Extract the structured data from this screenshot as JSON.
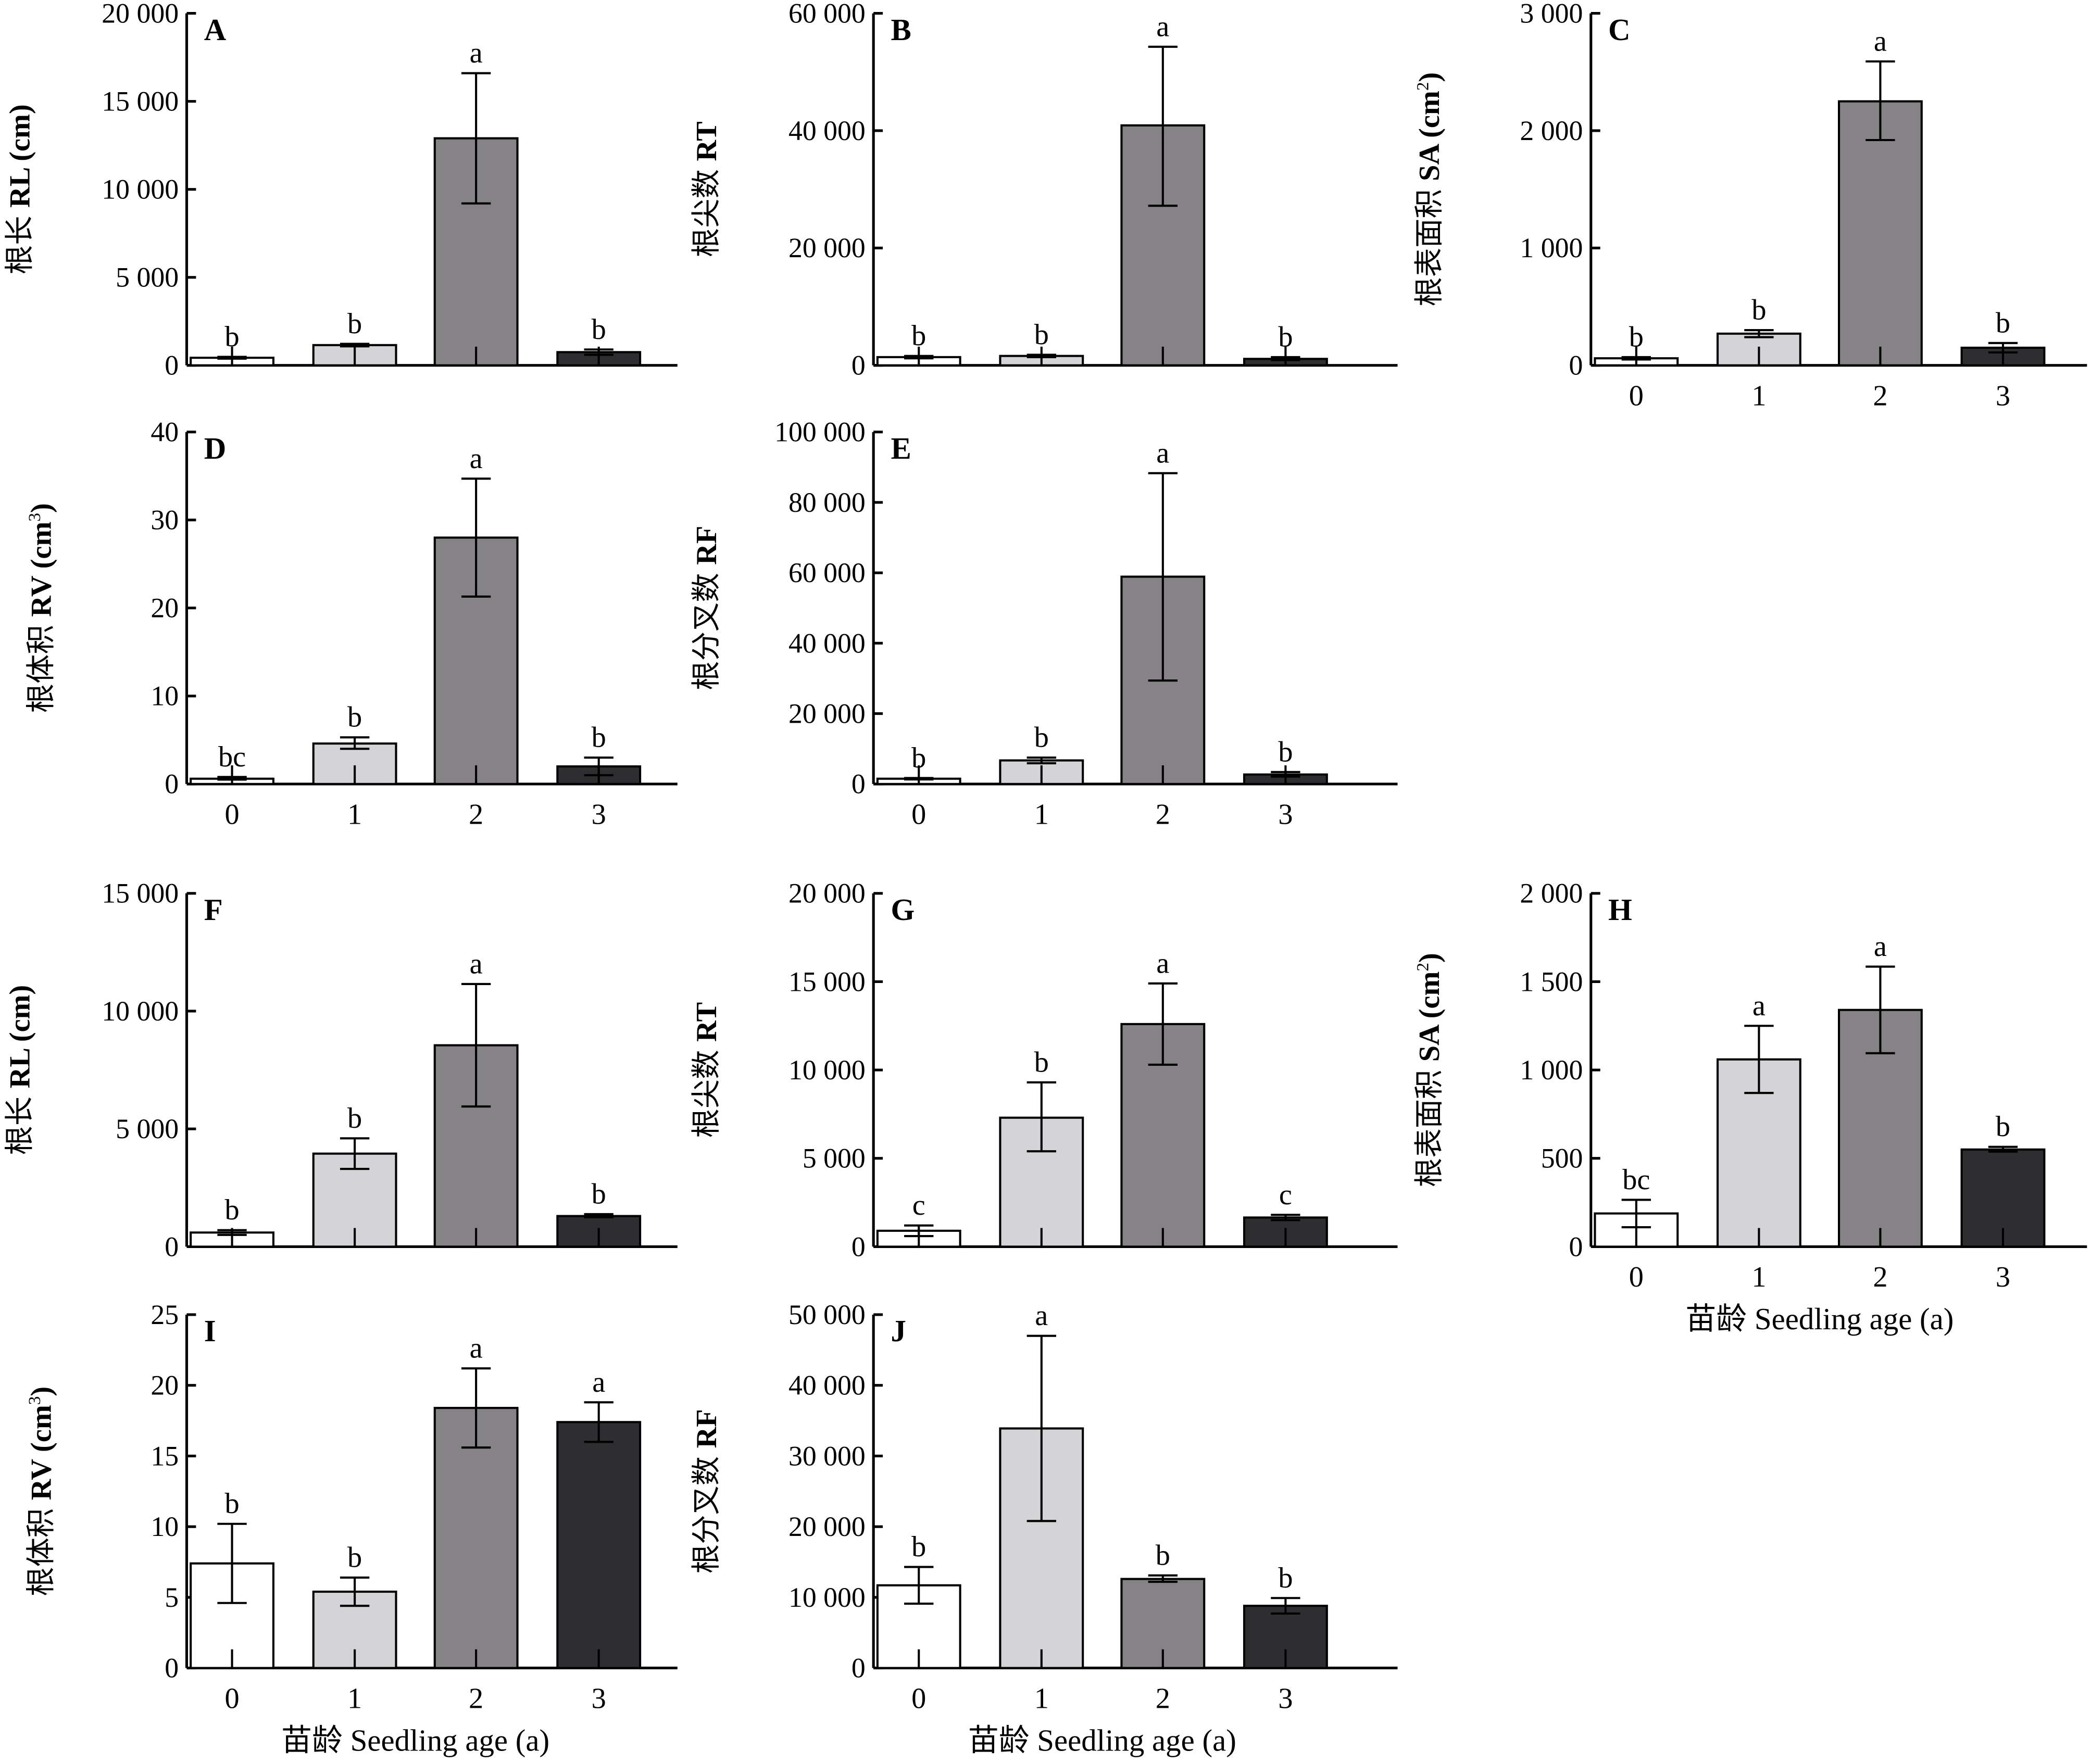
{
  "figure": {
    "x_axis_title": "苗龄 Seedling age (a)",
    "bar_colors": [
      "#ffffff",
      "#d4d4d6",
      "#858386",
      "#2e2e30"
    ]
  },
  "chart_data": [
    {
      "panel": "A",
      "type": "bar",
      "ylabel_cn": "根长",
      "ylabel_en": "RL (cm)",
      "ylabel_sup": "",
      "categories": [
        "0",
        "1",
        "2",
        "3"
      ],
      "show_xticks": false,
      "show_xlabel": false,
      "ylim": [
        0,
        20000
      ],
      "yticks": [
        0,
        5000,
        10000,
        15000,
        20000
      ],
      "ytick_labels": [
        "0",
        "5 000",
        "10 000",
        "15 000",
        "20 000"
      ],
      "values": [
        430,
        1150,
        12900,
        750
      ],
      "err_low": [
        380,
        1080,
        9200,
        600
      ],
      "err_high": [
        480,
        1220,
        16600,
        900
      ],
      "letters": [
        "b",
        "b",
        "a",
        "b"
      ]
    },
    {
      "panel": "B",
      "type": "bar",
      "ylabel_cn": "根尖数",
      "ylabel_en": "RT",
      "ylabel_sup": "",
      "categories": [
        "0",
        "1",
        "2",
        "3"
      ],
      "show_xticks": false,
      "show_xlabel": false,
      "ylim": [
        0,
        60000
      ],
      "yticks": [
        0,
        20000,
        40000,
        60000
      ],
      "ytick_labels": [
        "0",
        "20 000",
        "40 000",
        "60 000"
      ],
      "values": [
        1400,
        1600,
        40900,
        1100
      ],
      "err_low": [
        1200,
        1400,
        27200,
        900
      ],
      "err_high": [
        1600,
        1800,
        54300,
        1400
      ],
      "letters": [
        "b",
        "b",
        "a",
        "b"
      ]
    },
    {
      "panel": "C",
      "type": "bar",
      "ylabel_cn": "根表面积",
      "ylabel_en": "SA (cm",
      "ylabel_sup": "2",
      "categories": [
        "0",
        "1",
        "2",
        "3"
      ],
      "show_xticks": true,
      "show_xlabel": false,
      "ylim": [
        0,
        3000
      ],
      "yticks": [
        0,
        1000,
        2000,
        3000
      ],
      "ytick_labels": [
        "0",
        "1 000",
        "2 000",
        "3 000"
      ],
      "values": [
        60,
        270,
        2250,
        150
      ],
      "err_low": [
        50,
        240,
        1920,
        110
      ],
      "err_high": [
        70,
        300,
        2590,
        190
      ],
      "letters": [
        "b",
        "b",
        "a",
        "b"
      ]
    },
    {
      "panel": "D",
      "type": "bar",
      "ylabel_cn": "根体积",
      "ylabel_en": "RV (cm",
      "ylabel_sup": "3",
      "categories": [
        "0",
        "1",
        "2",
        "3"
      ],
      "show_xticks": true,
      "show_xlabel": false,
      "ylim": [
        0,
        40
      ],
      "yticks": [
        0,
        10,
        20,
        30,
        40
      ],
      "ytick_labels": [
        "0",
        "10",
        "20",
        "30",
        "40"
      ],
      "values": [
        0.6,
        4.6,
        28.0,
        2.0
      ],
      "err_low": [
        0.5,
        4.0,
        21.3,
        1.0
      ],
      "err_high": [
        0.8,
        5.3,
        34.7,
        3.0
      ],
      "letters": [
        "bc",
        "b",
        "a",
        "b"
      ]
    },
    {
      "panel": "E",
      "type": "bar",
      "ylabel_cn": "根分叉数",
      "ylabel_en": "RF",
      "ylabel_sup": "",
      "categories": [
        "0",
        "1",
        "2",
        "3"
      ],
      "show_xticks": true,
      "show_xlabel": false,
      "ylim": [
        0,
        100000
      ],
      "yticks": [
        0,
        20000,
        40000,
        60000,
        80000,
        100000
      ],
      "ytick_labels": [
        "0",
        "20 000",
        "40 000",
        "60 000",
        "80 000",
        "100 000"
      ],
      "values": [
        1500,
        6700,
        58900,
        2700
      ],
      "err_low": [
        1300,
        5900,
        29400,
        2100
      ],
      "err_high": [
        1700,
        7500,
        88300,
        3400
      ],
      "letters": [
        "b",
        "b",
        "a",
        "b"
      ]
    },
    {
      "panel": "F",
      "type": "bar",
      "ylabel_cn": "根长",
      "ylabel_en": "RL (cm)",
      "ylabel_sup": "",
      "categories": [
        "0",
        "1",
        "2",
        "3"
      ],
      "show_xticks": false,
      "show_xlabel": false,
      "ylim": [
        0,
        15000
      ],
      "yticks": [
        0,
        5000,
        10000,
        15000
      ],
      "ytick_labels": [
        "0",
        "5 000",
        "10 000",
        "15 000"
      ],
      "values": [
        600,
        3950,
        8550,
        1300
      ],
      "err_low": [
        500,
        3300,
        5950,
        1250
      ],
      "err_high": [
        700,
        4600,
        11150,
        1380
      ],
      "letters": [
        "b",
        "b",
        "a",
        "b"
      ]
    },
    {
      "panel": "G",
      "type": "bar",
      "ylabel_cn": "根尖数",
      "ylabel_en": "RT",
      "ylabel_sup": "",
      "categories": [
        "0",
        "1",
        "2",
        "3"
      ],
      "show_xticks": false,
      "show_xlabel": false,
      "ylim": [
        0,
        20000
      ],
      "yticks": [
        0,
        5000,
        10000,
        15000,
        20000
      ],
      "ytick_labels": [
        "0",
        "5 000",
        "10 000",
        "15 000",
        "20 000"
      ],
      "values": [
        900,
        7300,
        12600,
        1650
      ],
      "err_low": [
        600,
        5400,
        10300,
        1500
      ],
      "err_high": [
        1200,
        9300,
        14900,
        1800
      ],
      "letters": [
        "c",
        "b",
        "a",
        "c"
      ]
    },
    {
      "panel": "H",
      "type": "bar",
      "ylabel_cn": "根表面积",
      "ylabel_en": "SA (cm",
      "ylabel_sup": "2",
      "categories": [
        "0",
        "1",
        "2",
        "3"
      ],
      "show_xticks": true,
      "show_xlabel": true,
      "ylim": [
        0,
        2000
      ],
      "yticks": [
        0,
        500,
        1000,
        1500,
        2000
      ],
      "ytick_labels": [
        "0",
        "500",
        "1 000",
        "1 500",
        "2 000"
      ],
      "values": [
        188,
        1060,
        1340,
        550
      ],
      "err_low": [
        110,
        870,
        1095,
        538
      ],
      "err_high": [
        265,
        1250,
        1585,
        565
      ],
      "letters": [
        "bc",
        "a",
        "a",
        "b"
      ]
    },
    {
      "panel": "I",
      "type": "bar",
      "ylabel_cn": "根体积",
      "ylabel_en": "RV (cm",
      "ylabel_sup": "3",
      "categories": [
        "0",
        "1",
        "2",
        "3"
      ],
      "show_xticks": true,
      "show_xlabel": true,
      "ylim": [
        0,
        25
      ],
      "yticks": [
        0,
        5,
        10,
        15,
        20,
        25
      ],
      "ytick_labels": [
        "0",
        "5",
        "10",
        "15",
        "20",
        "25"
      ],
      "values": [
        7.4,
        5.4,
        18.4,
        17.4
      ],
      "err_low": [
        4.6,
        4.4,
        15.6,
        16.0
      ],
      "err_high": [
        10.2,
        6.4,
        21.2,
        18.8
      ],
      "letters": [
        "b",
        "b",
        "a",
        "a"
      ]
    },
    {
      "panel": "J",
      "type": "bar",
      "ylabel_cn": "根分叉数",
      "ylabel_en": "RF",
      "ylabel_sup": "",
      "categories": [
        "0",
        "1",
        "2",
        "3"
      ],
      "show_xticks": true,
      "show_xlabel": true,
      "ylim": [
        0,
        50000
      ],
      "yticks": [
        0,
        10000,
        20000,
        30000,
        40000,
        50000
      ],
      "ytick_labels": [
        "0",
        "10 000",
        "20 000",
        "30 000",
        "40 000",
        "50 000"
      ],
      "values": [
        11700,
        33900,
        12600,
        8800
      ],
      "err_low": [
        9100,
        20800,
        12200,
        7700
      ],
      "err_high": [
        14300,
        47000,
        13100,
        9900
      ],
      "letters": [
        "b",
        "a",
        "b",
        "b"
      ]
    }
  ]
}
